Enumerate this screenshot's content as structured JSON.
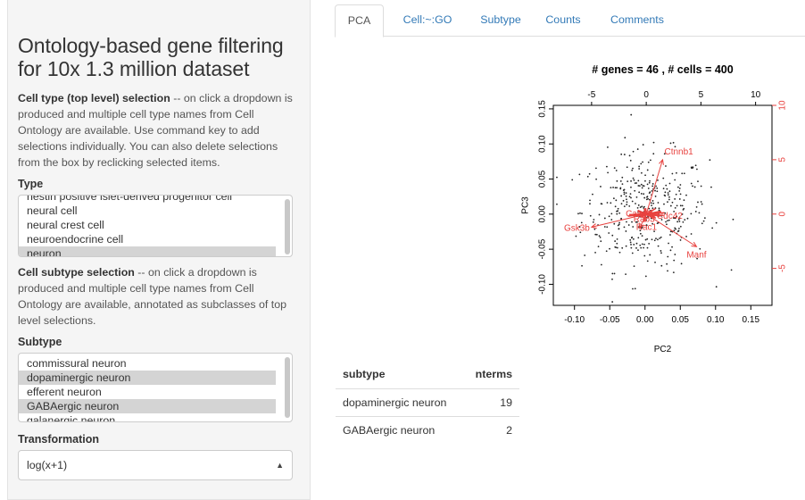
{
  "sidebar": {
    "title": "Ontology-based gene filtering for 10x 1.3 million dataset",
    "type_help_bold": "Cell type (top level) selection",
    "type_help_text": " -- on click a dropdown is produced and multiple cell type names from Cell Ontology are available. Use command key to add selections individually. You can also delete selections from the box by reclicking selected items.",
    "type_label": "Type",
    "type_options": [
      {
        "label": "nestin positive islet-derived progenitor cell",
        "selected": false
      },
      {
        "label": "neural cell",
        "selected": false
      },
      {
        "label": "neural crest cell",
        "selected": false
      },
      {
        "label": "neuroendocrine cell",
        "selected": false
      },
      {
        "label": "neuron",
        "selected": true
      }
    ],
    "subtype_help_bold": "Cell subtype selection",
    "subtype_help_text": " -- on click a dropdown is produced and multiple cell type names from Cell Ontology are available, annotated as subclasses of top level selections.",
    "subtype_label": "Subtype",
    "subtype_options": [
      {
        "label": "commissural neuron",
        "selected": false
      },
      {
        "label": "dopaminergic neuron",
        "selected": true
      },
      {
        "label": "efferent neuron",
        "selected": false
      },
      {
        "label": "GABAergic neuron",
        "selected": true
      },
      {
        "label": "galanergic neuron",
        "selected": false
      }
    ],
    "transformation_label": "Transformation",
    "transformation_value": "log(x+1)"
  },
  "tabs": [
    {
      "label": "PCA",
      "active": true
    },
    {
      "label": "Cell:~:GO",
      "active": false
    },
    {
      "label": "Subtype",
      "active": false
    },
    {
      "label": "Counts",
      "active": false
    },
    {
      "label": "Comments",
      "active": false
    }
  ],
  "chart_data": {
    "type": "scatter",
    "subtype": "biplot",
    "title": "# genes =  46 , # cells =  400",
    "xlabel": "PC2",
    "ylabel": "PC3",
    "xlim": [
      -0.13,
      0.18
    ],
    "ylim": [
      -0.13,
      0.155
    ],
    "x_ticks": [
      -0.1,
      -0.05,
      0.0,
      0.05,
      0.1,
      0.15
    ],
    "x_tick_labels": [
      "-0.10",
      "-0.05",
      "0.00",
      "0.05",
      "0.10",
      "0.15"
    ],
    "y_ticks": [
      -0.1,
      -0.05,
      0.0,
      0.05,
      0.1,
      0.15
    ],
    "y_tick_labels": [
      "-0.10",
      "-0.05",
      "0.00",
      "0.05",
      "0.10",
      "0.15"
    ],
    "top_axis": {
      "ticks": [
        -5,
        0,
        5,
        10
      ],
      "tick_labels": [
        "-5",
        "0",
        "5",
        "10"
      ],
      "lim": [
        -8.5,
        11.5
      ]
    },
    "right_axis": {
      "ticks": [
        -5,
        0,
        5,
        10
      ],
      "tick_labels": [
        "-5",
        "0",
        "5",
        "10"
      ],
      "lim": [
        -8.4,
        10.0
      ]
    },
    "points": {
      "n": 400,
      "color": "#222222",
      "spread_x": 0.045,
      "spread_y": 0.042
    },
    "loadings": [
      {
        "name": "Ctnnb1",
        "x": 1.5,
        "y": 5.0
      },
      {
        "name": "Gsk3b",
        "x": -5.0,
        "y": -1.2
      },
      {
        "name": "Manf",
        "x": 4.6,
        "y": -3.0
      },
      {
        "name": "Rac1",
        "x": -0.6,
        "y": -1.3
      },
      {
        "name": "Rab3",
        "x": -0.2,
        "y": -0.7
      },
      {
        "name": "Calm1",
        "x": -0.7,
        "y": 0.0
      },
      {
        "name": "Cdc42",
        "x": 0.8,
        "y": -0.1
      }
    ],
    "loading_color": "#e8423f"
  },
  "table": {
    "headers": [
      "subtype",
      "nterms"
    ],
    "rows": [
      [
        "dopaminergic neuron",
        "19"
      ],
      [
        "GABAergic neuron",
        "2"
      ]
    ]
  }
}
